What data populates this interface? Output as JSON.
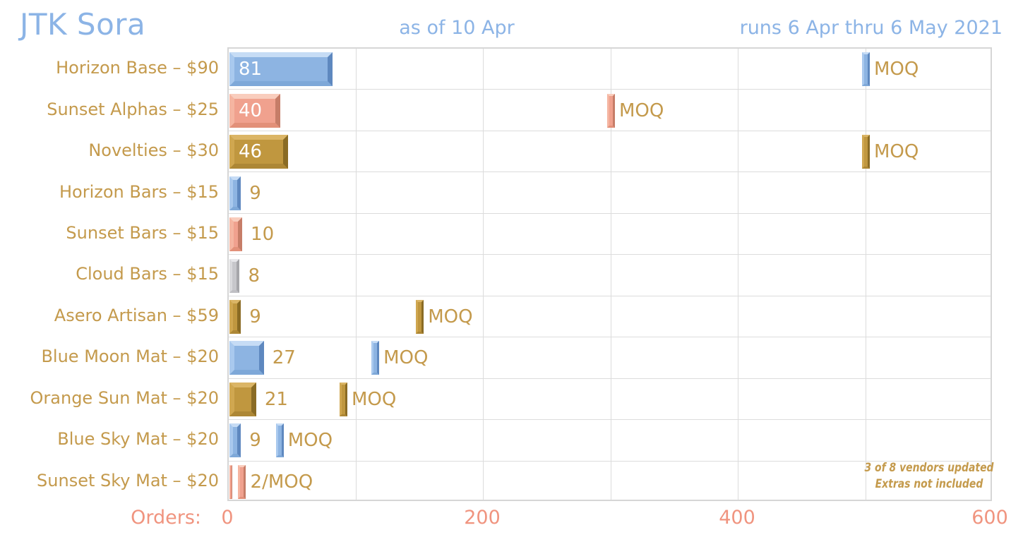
{
  "header": {
    "title": "JTK Sora",
    "as_of": "as of 10 Apr",
    "date_range": "runs 6 Apr thru 6 May 2021"
  },
  "chart_data": {
    "type": "bar",
    "orientation": "horizontal",
    "title": "JTK Sora",
    "xlabel": "Orders:",
    "x_ticks": [
      "0",
      "200",
      "400",
      "600"
    ],
    "x_tick_values": [
      0,
      200,
      400,
      600
    ],
    "xlim": [
      0,
      600
    ],
    "gridline_interval": 100,
    "grid": "on",
    "moq_label": "MOQ",
    "rows": [
      {
        "label": "Horizon Base – $90",
        "value": 81,
        "value_label": "81",
        "color": "blue",
        "moq": 500,
        "label_placement": "inside",
        "show_moq_text": true
      },
      {
        "label": "Sunset Alphas – $25",
        "value": 40,
        "value_label": "40",
        "color": "salmon",
        "moq": 300,
        "label_placement": "inside",
        "show_moq_text": true
      },
      {
        "label": "Novelties – $30",
        "value": 46,
        "value_label": "46",
        "color": "gold",
        "moq": 500,
        "label_placement": "inside",
        "show_moq_text": true
      },
      {
        "label": "Horizon Bars – $15",
        "value": 9,
        "value_label": "9",
        "color": "blue",
        "moq": null,
        "label_placement": "after-bar",
        "show_moq_text": false
      },
      {
        "label": "Sunset Bars – $15",
        "value": 10,
        "value_label": "10",
        "color": "salmon",
        "moq": null,
        "label_placement": "after-bar",
        "show_moq_text": false
      },
      {
        "label": "Cloud Bars – $15",
        "value": 8,
        "value_label": "8",
        "color": "gray",
        "moq": null,
        "label_placement": "after-bar",
        "show_moq_text": false
      },
      {
        "label": "Asero Artisan – $59",
        "value": 9,
        "value_label": "9",
        "color": "gold",
        "moq": 150,
        "label_placement": "after-bar",
        "show_moq_text": true
      },
      {
        "label": "Blue Moon Mat – $20",
        "value": 27,
        "value_label": "27",
        "color": "blue",
        "moq": 115,
        "label_placement": "after-bar",
        "show_moq_text": true
      },
      {
        "label": "Orange Sun Mat – $20",
        "value": 21,
        "value_label": "21",
        "color": "gold",
        "moq": 90,
        "label_placement": "after-bar",
        "show_moq_text": true
      },
      {
        "label": "Blue Sky Mat – $20",
        "value": 9,
        "value_label": "9",
        "color": "blue",
        "moq": 40,
        "label_placement": "after-bar",
        "show_moq_text": true
      },
      {
        "label": "Sunset Sky Mat – $20",
        "value": 2,
        "value_label": "2/MOQ",
        "color": "salmon",
        "moq": 10,
        "label_placement": "after-moq",
        "show_moq_text": false
      }
    ],
    "note_lines": [
      "3 of 8 vendors updated",
      "Extras not included"
    ],
    "legend_position": "none"
  },
  "colors": {
    "title_blue": "#8cb4e6",
    "gold_text": "#c49a4c",
    "salmon_text": "#f0947f",
    "grid": "#dcdcdc",
    "value_inside": "#ffffff",
    "palette": {
      "blue": {
        "face": "#8db4e2",
        "light": "#c6dcf5",
        "midlight": "#a9c9ee",
        "dark": "#5e88bf",
        "shadow": "#7ea8d8"
      },
      "salmon": {
        "face": "#f0a18e",
        "light": "#f9cdbd",
        "midlight": "#f5b5a1",
        "dark": "#c67d68",
        "shadow": "#e29079"
      },
      "gold": {
        "face": "#c0973f",
        "light": "#dbb566",
        "midlight": "#d0a750",
        "dark": "#8a6b24",
        "shadow": "#ad8735"
      },
      "gray": {
        "face": "#c7c7cb",
        "light": "#e7e7ea",
        "midlight": "#d9d9dc",
        "dark": "#a6a6aa",
        "shadow": "#bfbfc3"
      }
    }
  }
}
